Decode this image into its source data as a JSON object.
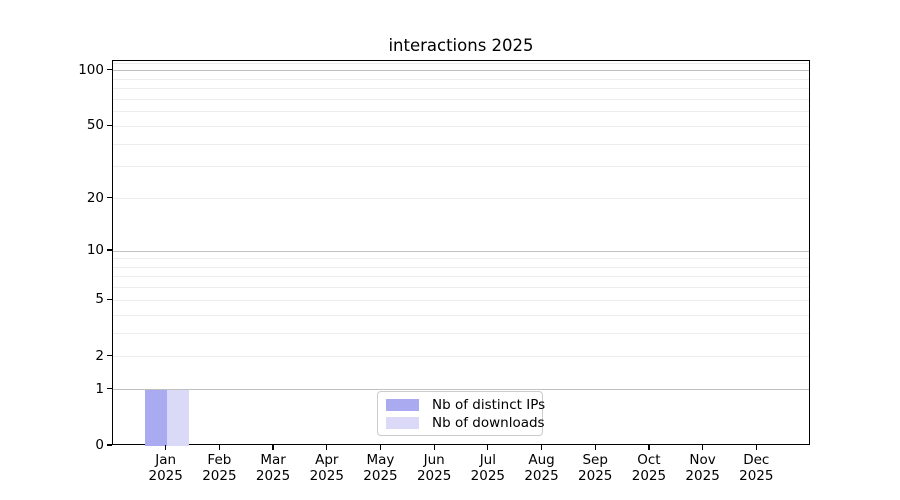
{
  "chart_data": {
    "type": "bar",
    "title": "interactions 2025",
    "x": {
      "categories": [
        "Jan",
        "Feb",
        "Mar",
        "Apr",
        "May",
        "Jun",
        "Jul",
        "Aug",
        "Sep",
        "Oct",
        "Nov",
        "Dec"
      ],
      "year_sublabel": "2025"
    },
    "series": [
      {
        "name": "Nb of distinct IPs",
        "color": "#aaaaf0",
        "values": [
          1,
          0,
          0,
          0,
          0,
          0,
          0,
          0,
          0,
          0,
          0,
          0
        ]
      },
      {
        "name": "Nb of downloads",
        "color": "#dadaf8",
        "values": [
          1,
          0,
          0,
          0,
          0,
          0,
          0,
          0,
          0,
          0,
          0,
          0
        ]
      }
    ],
    "y": {
      "scale": "log1p",
      "lim": [
        0,
        113
      ],
      "tick_values": [
        100,
        50,
        20,
        10,
        5,
        2,
        1,
        0
      ],
      "major_grid_values": [
        1,
        10,
        100
      ],
      "minor_grid_values": [
        2,
        3,
        4,
        5,
        6,
        7,
        8,
        9,
        20,
        30,
        40,
        50,
        60,
        70,
        80,
        90,
        110
      ],
      "major_grid_color": "#c0c0c0",
      "minor_grid_color": "#ededed"
    },
    "legend": {
      "position": "lower-center-inside"
    },
    "grid": "horizontal-only",
    "axes_color": "#000000",
    "xlabel": "",
    "ylabel": ""
  }
}
